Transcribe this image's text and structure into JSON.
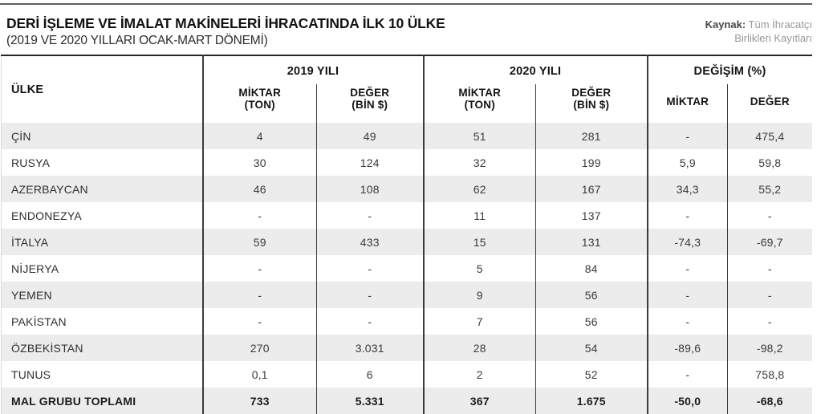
{
  "page": {
    "title": "DERİ İŞLEME VE İMALAT MAKİNELERİ İHRACATINDA İLK 10 ÜLKE",
    "subtitle": "(2019 VE 2020 YILLARI OCAK-MART DÖNEMİ)",
    "source_label": "Kaynak:",
    "source_line1": " Tüm İhracatçı",
    "source_line2": "Birlikleri Kayıtları"
  },
  "colors": {
    "stripe": "#ececec",
    "rule": "#5e5e5e",
    "divider": "#3c3c3c",
    "table_top_border": "#262626",
    "table_bottom_border": "#7a7a7a"
  },
  "table": {
    "country_header": "ÜLKE",
    "group_2019": "2019 YILI",
    "group_2020": "2020 YILI",
    "group_change": "DEĞİŞİM (%)",
    "sub_miktar": "MİKTAR",
    "sub_ton": "(TON)",
    "sub_deger": "DEĞER",
    "sub_bin": "(BİN $)"
  },
  "chart_data": {
    "type": "table",
    "title": "DERİ İŞLEME VE İMALAT MAKİNELERİ İHRACATINDA İLK 10 ÜLKE",
    "subtitle": "(2019 VE 2020 YILLARI OCAK-MART DÖNEMİ)",
    "source": "Kaynak: Tüm İhracatçı Birlikleri Kayıtları",
    "columns": [
      "ÜLKE",
      "2019 YILI MİKTAR (TON)",
      "2019 YILI DEĞER (BİN $)",
      "2020 YILI MİKTAR (TON)",
      "2020 YILI DEĞER (BİN $)",
      "DEĞİŞİM (%) MİKTAR",
      "DEĞİŞİM (%) DEĞER"
    ],
    "rows": [
      {
        "country": "ÇİN",
        "values": [
          "4",
          "49",
          "51",
          "281",
          "-",
          "475,4"
        ],
        "bold": false
      },
      {
        "country": "RUSYA",
        "values": [
          "30",
          "124",
          "32",
          "199",
          "5,9",
          "59,8"
        ],
        "bold": false
      },
      {
        "country": "AZERBAYCAN",
        "values": [
          "46",
          "108",
          "62",
          "167",
          "34,3",
          "55,2"
        ],
        "bold": false
      },
      {
        "country": "ENDONEZYA",
        "values": [
          "-",
          "-",
          "11",
          "137",
          "-",
          "-"
        ],
        "bold": false
      },
      {
        "country": "İTALYA",
        "values": [
          "59",
          "433",
          "15",
          "131",
          "-74,3",
          "-69,7"
        ],
        "bold": false
      },
      {
        "country": "NİJERYA",
        "values": [
          "-",
          "-",
          "5",
          "84",
          "-",
          "-"
        ],
        "bold": false
      },
      {
        "country": "YEMEN",
        "values": [
          "-",
          "-",
          "9",
          "56",
          "-",
          "-"
        ],
        "bold": false
      },
      {
        "country": "PAKİSTAN",
        "values": [
          "-",
          "-",
          "7",
          "56",
          "-",
          "-"
        ],
        "bold": false
      },
      {
        "country": "ÖZBEKİSTAN",
        "values": [
          "270",
          "3.031",
          "28",
          "54",
          "-89,6",
          "-98,2"
        ],
        "bold": false
      },
      {
        "country": "TUNUS",
        "values": [
          "0,1",
          "6",
          "2",
          "52",
          "-",
          "758,8"
        ],
        "bold": false
      },
      {
        "country": "MAL GRUBU TOPLAMI",
        "values": [
          "733",
          "5.331",
          "367",
          "1.675",
          "-50,0",
          "-68,6"
        ],
        "bold": true
      }
    ]
  }
}
